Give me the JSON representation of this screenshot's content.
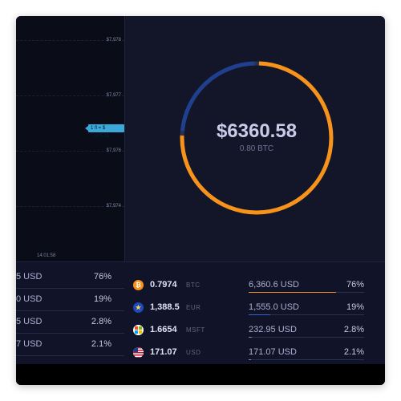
{
  "chart": {
    "price_labels": [
      "$7,978",
      "$7,977",
      "$7,976",
      "$7,974"
    ],
    "current_tag": "1 fl = $ 7,976.32",
    "time_label": "14:01:58"
  },
  "portfolio": {
    "total": "$6360.58",
    "sub": "0.80 BTC",
    "colors": {
      "major": "#f7931a",
      "minor": "#1f3f8f",
      "track": "#2a3050"
    },
    "donut_fraction_major": 0.76
  },
  "left_rows": [
    {
      "value": "5 USD",
      "pct": "76%"
    },
    {
      "value": "0 USD",
      "pct": "19%"
    },
    {
      "value": "5 USD",
      "pct": "2.8%"
    },
    {
      "value": "7 USD",
      "pct": "2.1%"
    }
  ],
  "assets": [
    {
      "icon": "bitcoin-icon",
      "glyph": "₿",
      "icon_bg": "#f7931a",
      "amount": "0.7974",
      "symbol": "BTC",
      "usd": "6,360.6 USD",
      "pct": "76%",
      "share": 0.76,
      "bar_color": "#f7931a"
    },
    {
      "icon": "euro-flag-icon",
      "glyph": "★",
      "icon_bg": "#1e49b8",
      "amount": "1,388.5",
      "symbol": "EUR",
      "usd": "1,555.0 USD",
      "pct": "19%",
      "share": 0.19,
      "bar_color": "#3a63c9"
    },
    {
      "icon": "microsoft-icon",
      "glyph": "",
      "icon_bg": "#ffffff",
      "amount": "1.6654",
      "symbol": "MSFT",
      "usd": "232.95 USD",
      "pct": "2.8%",
      "share": 0.028,
      "bar_color": "#7f86a8"
    },
    {
      "icon": "us-flag-icon",
      "glyph": "",
      "icon_bg": "#ffffff",
      "amount": "171.07",
      "symbol": "USD",
      "usd": "171.07 USD",
      "pct": "2.1%",
      "share": 0.021,
      "bar_color": "#7f86a8"
    }
  ]
}
